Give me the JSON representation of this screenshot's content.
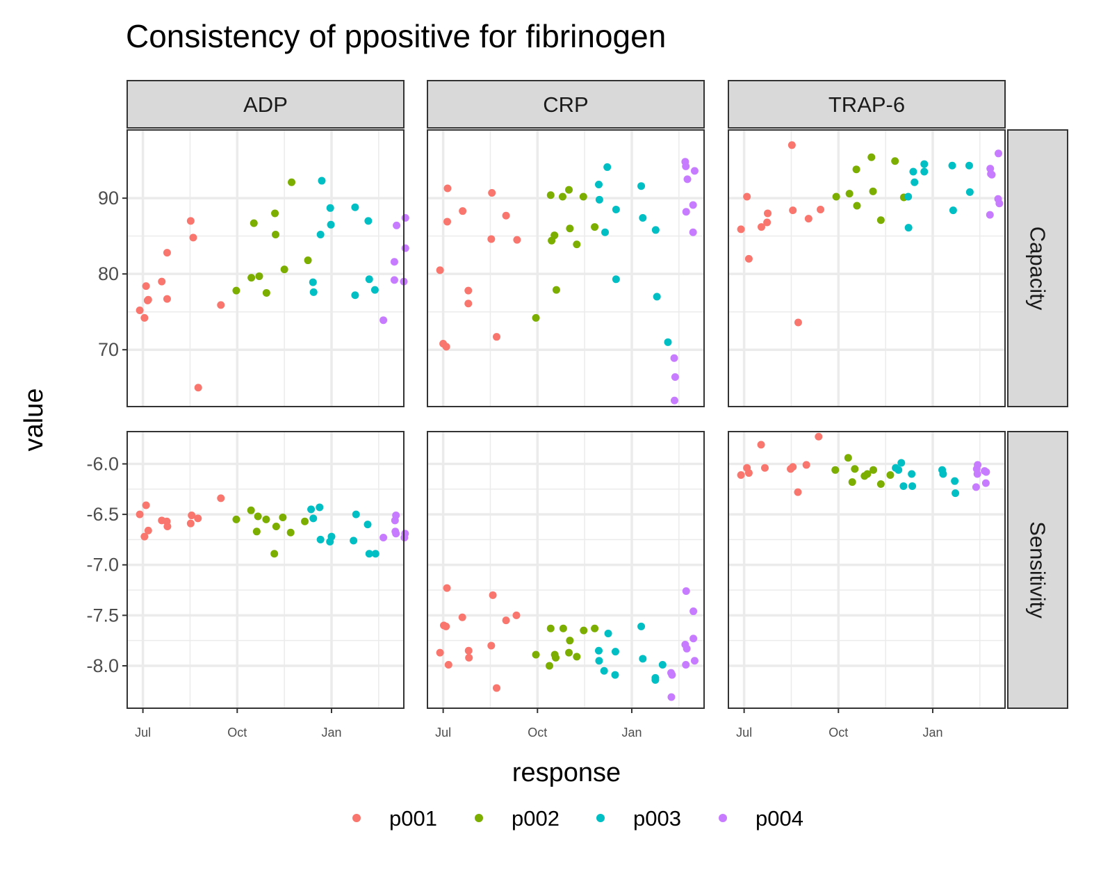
{
  "chart_data": {
    "type": "scatter",
    "title": "Consistency of  ppositive  for  fibrinogen",
    "xlabel": "response",
    "ylabel": "value",
    "facet_columns": [
      "ADP",
      "CRP",
      "TRAP-6"
    ],
    "facet_rows": [
      "Capacity",
      "Sensitivity"
    ],
    "x_ticks": [
      "Jul",
      "Oct",
      "Jan"
    ],
    "x_range_days": [
      -5,
      83
    ],
    "y_axes": {
      "Capacity": {
        "range": [
          62.5,
          99
        ],
        "ticks": [
          70,
          80,
          90
        ],
        "tick_labels": [
          "70",
          "80",
          "90"
        ]
      },
      "Sensitivity": {
        "range": [
          -8.42,
          -5.68
        ],
        "ticks": [
          -8.0,
          -7.5,
          -7.0,
          -6.5,
          -6.0
        ],
        "tick_labels": [
          "-8.0",
          "-7.5",
          "-7.0",
          "-6.5",
          "-6.0"
        ]
      }
    },
    "grid": true,
    "legend_position": "bottom",
    "series": [
      {
        "name": "p001",
        "color": "#F8766D"
      },
      {
        "name": "p002",
        "color": "#7CAE00"
      },
      {
        "name": "p003",
        "color": "#00BFC4"
      },
      {
        "name": "p004",
        "color": "#C77CFF"
      }
    ],
    "points": {
      "Capacity": {
        "ADP": {
          "p001": [
            [
              -1,
              75.2
            ],
            [
              0.5,
              74.2
            ],
            [
              1,
              78.4
            ],
            [
              1.5,
              76.5
            ],
            [
              1.7,
              76.6
            ],
            [
              6,
              79
            ],
            [
              7.7,
              76.7
            ],
            [
              7.7,
              82.8
            ],
            [
              15.2,
              87
            ],
            [
              16,
              84.8
            ],
            [
              17.6,
              65
            ],
            [
              24.8,
              75.9
            ]
          ],
          "p002": [
            [
              29.7,
              77.8
            ],
            [
              34.5,
              79.5
            ],
            [
              37,
              79.7
            ],
            [
              35.3,
              86.7
            ],
            [
              39.3,
              77.5
            ],
            [
              42,
              88
            ],
            [
              42.2,
              85.2
            ],
            [
              45,
              80.6
            ],
            [
              47.3,
              92.1
            ],
            [
              52.5,
              81.8
            ]
          ],
          "p003": [
            [
              54.1,
              78.9
            ],
            [
              54.3,
              77.6
            ],
            [
              56.5,
              85.2
            ],
            [
              56.9,
              92.3
            ],
            [
              59.6,
              88.7
            ],
            [
              59.8,
              86.5
            ],
            [
              67.5,
              77.2
            ],
            [
              67.5,
              88.8
            ],
            [
              72,
              79.3
            ],
            [
              71.7,
              87
            ],
            [
              73.8,
              77.9
            ]
          ],
          "p004": [
            [
              76.5,
              73.9
            ],
            [
              80,
              79.2
            ],
            [
              80,
              81.6
            ],
            [
              80.7,
              86.4
            ],
            [
              83,
              79
            ],
            [
              83.5,
              87.4
            ],
            [
              83.5,
              83.4
            ]
          ]
        },
        "CRP": {
          "p001": [
            [
              -1,
              80.5
            ],
            [
              0,
              70.8
            ],
            [
              1,
              70.4
            ],
            [
              1.3,
              86.9
            ],
            [
              1.4,
              91.3
            ],
            [
              6.2,
              88.3
            ],
            [
              8,
              77.8
            ],
            [
              8,
              76.1
            ],
            [
              15.3,
              84.6
            ],
            [
              15.5,
              90.7
            ],
            [
              17,
              71.7
            ],
            [
              20,
              87.7
            ],
            [
              23.5,
              84.5
            ]
          ],
          "p002": [
            [
              29.5,
              74.2
            ],
            [
              34.2,
              90.4
            ],
            [
              34.5,
              84.4
            ],
            [
              35.4,
              85.1
            ],
            [
              36,
              77.9
            ],
            [
              38,
              90.2
            ],
            [
              40,
              91.1
            ],
            [
              40.3,
              86
            ],
            [
              42.5,
              83.9
            ],
            [
              44.6,
              90.2
            ],
            [
              48.2,
              86.2
            ]
          ],
          "p003": [
            [
              49.5,
              91.8
            ],
            [
              49.7,
              89.8
            ],
            [
              51.5,
              85.5
            ],
            [
              52.2,
              94.1
            ],
            [
              55,
              88.5
            ],
            [
              55,
              79.3
            ],
            [
              63,
              91.6
            ],
            [
              63.5,
              87.4
            ],
            [
              67.6,
              85.8
            ],
            [
              68,
              77
            ],
            [
              71.5,
              71
            ]
          ],
          "p004": [
            [
              73.5,
              68.9
            ],
            [
              73.8,
              66.4
            ],
            [
              73.6,
              63.3
            ],
            [
              77.3,
              88.2
            ],
            [
              77,
              94.8
            ],
            [
              77.2,
              94.2
            ],
            [
              77.7,
              92.5
            ],
            [
              79.5,
              89.1
            ],
            [
              79.5,
              85.5
            ],
            [
              80,
              93.6
            ]
          ]
        },
        "TRAP-6": {
          "p001": [
            [
              -1,
              85.9
            ],
            [
              0.9,
              90.2
            ],
            [
              1.5,
              82
            ],
            [
              5.5,
              86.2
            ],
            [
              7.3,
              86.8
            ],
            [
              7.5,
              88
            ],
            [
              15.2,
              97
            ],
            [
              15.5,
              88.4
            ],
            [
              17.2,
              73.6
            ],
            [
              20.5,
              87.3
            ],
            [
              24.3,
              88.5
            ]
          ],
          "p002": [
            [
              29.3,
              90.2
            ],
            [
              33.5,
              90.6
            ],
            [
              35.7,
              93.8
            ],
            [
              35.9,
              89
            ],
            [
              40.5,
              95.4
            ],
            [
              41,
              90.9
            ],
            [
              43.5,
              87.1
            ],
            [
              48,
              94.9
            ],
            [
              50.8,
              90.1
            ]
          ],
          "p003": [
            [
              52.2,
              90.2
            ],
            [
              52.3,
              86.1
            ],
            [
              53.8,
              93.5
            ],
            [
              54.2,
              92.1
            ],
            [
              57.3,
              94.5
            ],
            [
              57.3,
              93.5
            ],
            [
              66.2,
              94.3
            ],
            [
              66.5,
              88.4
            ],
            [
              71.6,
              94.3
            ],
            [
              71.8,
              90.8
            ]
          ],
          "p004": [
            [
              78.2,
              87.8
            ],
            [
              78.3,
              93.9
            ],
            [
              78.5,
              93.2
            ],
            [
              78.8,
              93.1
            ],
            [
              80.8,
              89.9
            ],
            [
              80.9,
              95.9
            ],
            [
              81.2,
              89.3
            ]
          ]
        }
      },
      "Sensitivity": {
        "ADP": {
          "p001": [
            [
              -1,
              -6.5
            ],
            [
              0.5,
              -6.72
            ],
            [
              1,
              -6.41
            ],
            [
              1.7,
              -6.66
            ],
            [
              6,
              -6.56
            ],
            [
              7.6,
              -6.57
            ],
            [
              7.8,
              -6.62
            ],
            [
              15.2,
              -6.59
            ],
            [
              15.5,
              -6.51
            ],
            [
              17.5,
              -6.54
            ],
            [
              24.8,
              -6.34
            ]
          ],
          "p002": [
            [
              29.7,
              -6.55
            ],
            [
              34.4,
              -6.46
            ],
            [
              36.2,
              -6.67
            ],
            [
              36.6,
              -6.52
            ],
            [
              39.2,
              -6.55
            ],
            [
              41.8,
              -6.89
            ],
            [
              42.4,
              -6.62
            ],
            [
              44.5,
              -6.53
            ],
            [
              47,
              -6.68
            ],
            [
              51.5,
              -6.57
            ]
          ],
          "p003": [
            [
              53.5,
              -6.45
            ],
            [
              54.2,
              -6.54
            ],
            [
              56.2,
              -6.43
            ],
            [
              56.5,
              -6.75
            ],
            [
              59.5,
              -6.77
            ],
            [
              60,
              -6.72
            ],
            [
              67,
              -6.76
            ],
            [
              67.8,
              -6.5
            ],
            [
              71.5,
              -6.6
            ],
            [
              72,
              -6.89
            ],
            [
              74,
              -6.89
            ]
          ],
          "p004": [
            [
              76.5,
              -6.73
            ],
            [
              80.2,
              -6.56
            ],
            [
              80.3,
              -6.67
            ],
            [
              80.5,
              -6.69
            ],
            [
              80.5,
              -6.51
            ],
            [
              83.2,
              -6.73
            ],
            [
              83.4,
              -6.69
            ]
          ]
        },
        "CRP": {
          "p001": [
            [
              -1,
              -7.87
            ],
            [
              0.2,
              -7.6
            ],
            [
              0.9,
              -7.61
            ],
            [
              1.2,
              -7.23
            ],
            [
              1.7,
              -7.99
            ],
            [
              6.1,
              -7.52
            ],
            [
              8.1,
              -7.85
            ],
            [
              8.2,
              -7.92
            ],
            [
              15.3,
              -7.8
            ],
            [
              15.8,
              -7.3
            ],
            [
              17,
              -8.22
            ],
            [
              20,
              -7.55
            ],
            [
              23.3,
              -7.5
            ]
          ],
          "p002": [
            [
              29.5,
              -7.89
            ],
            [
              33.8,
              -8.0
            ],
            [
              34.2,
              -7.63
            ],
            [
              35.5,
              -7.89
            ],
            [
              35.8,
              -7.92
            ],
            [
              38.2,
              -7.63
            ],
            [
              40.3,
              -7.75
            ],
            [
              40,
              -7.87
            ],
            [
              42.5,
              -7.91
            ],
            [
              44.7,
              -7.65
            ],
            [
              48.2,
              -7.63
            ]
          ],
          "p003": [
            [
              49.6,
              -7.95
            ],
            [
              49.5,
              -7.85
            ],
            [
              51.2,
              -8.05
            ],
            [
              52.5,
              -7.68
            ],
            [
              54.7,
              -8.09
            ],
            [
              54.8,
              -7.86
            ],
            [
              63,
              -7.61
            ],
            [
              63.5,
              -7.93
            ],
            [
              67.5,
              -8.14
            ],
            [
              67.5,
              -8.12
            ],
            [
              69.8,
              -7.99
            ]
          ],
          "p004": [
            [
              72.5,
              -8.07
            ],
            [
              72.8,
              -8.09
            ],
            [
              72.6,
              -8.31
            ],
            [
              77.2,
              -7.99
            ],
            [
              77,
              -7.79
            ],
            [
              77.3,
              -7.26
            ],
            [
              77.5,
              -7.83
            ],
            [
              79.6,
              -7.46
            ],
            [
              79.6,
              -7.73
            ],
            [
              80,
              -7.95
            ]
          ]
        },
        "TRAP-6": {
          "p001": [
            [
              -1,
              -6.11
            ],
            [
              0.9,
              -6.04
            ],
            [
              1.5,
              -6.09
            ],
            [
              5.4,
              -5.81
            ],
            [
              6.6,
              -6.04
            ],
            [
              14.8,
              -6.05
            ],
            [
              15.5,
              -6.03
            ],
            [
              17.1,
              -6.28
            ],
            [
              19.8,
              -6.01
            ],
            [
              23.7,
              -5.73
            ]
          ],
          "p002": [
            [
              29,
              -6.06
            ],
            [
              33.1,
              -5.94
            ],
            [
              34.4,
              -6.18
            ],
            [
              35.2,
              -6.05
            ],
            [
              38.3,
              -6.12
            ],
            [
              39.2,
              -6.1
            ],
            [
              41.1,
              -6.06
            ],
            [
              43.5,
              -6.2
            ],
            [
              46.5,
              -6.11
            ]
          ],
          "p003": [
            [
              48.2,
              -6.04
            ],
            [
              49.1,
              -6.06
            ],
            [
              50,
              -5.99
            ],
            [
              50.7,
              -6.22
            ],
            [
              53.3,
              -6.1
            ],
            [
              53.5,
              -6.22
            ],
            [
              63,
              -6.06
            ],
            [
              63.3,
              -6.1
            ],
            [
              67,
              -6.17
            ],
            [
              67.2,
              -6.29
            ]
          ],
          "p004": [
            [
              73.8,
              -6.23
            ],
            [
              74,
              -6.05
            ],
            [
              74.2,
              -6.1
            ],
            [
              74.3,
              -6.01
            ],
            [
              76.5,
              -6.07
            ],
            [
              76.9,
              -6.19
            ],
            [
              77,
              -6.08
            ]
          ]
        }
      }
    }
  }
}
